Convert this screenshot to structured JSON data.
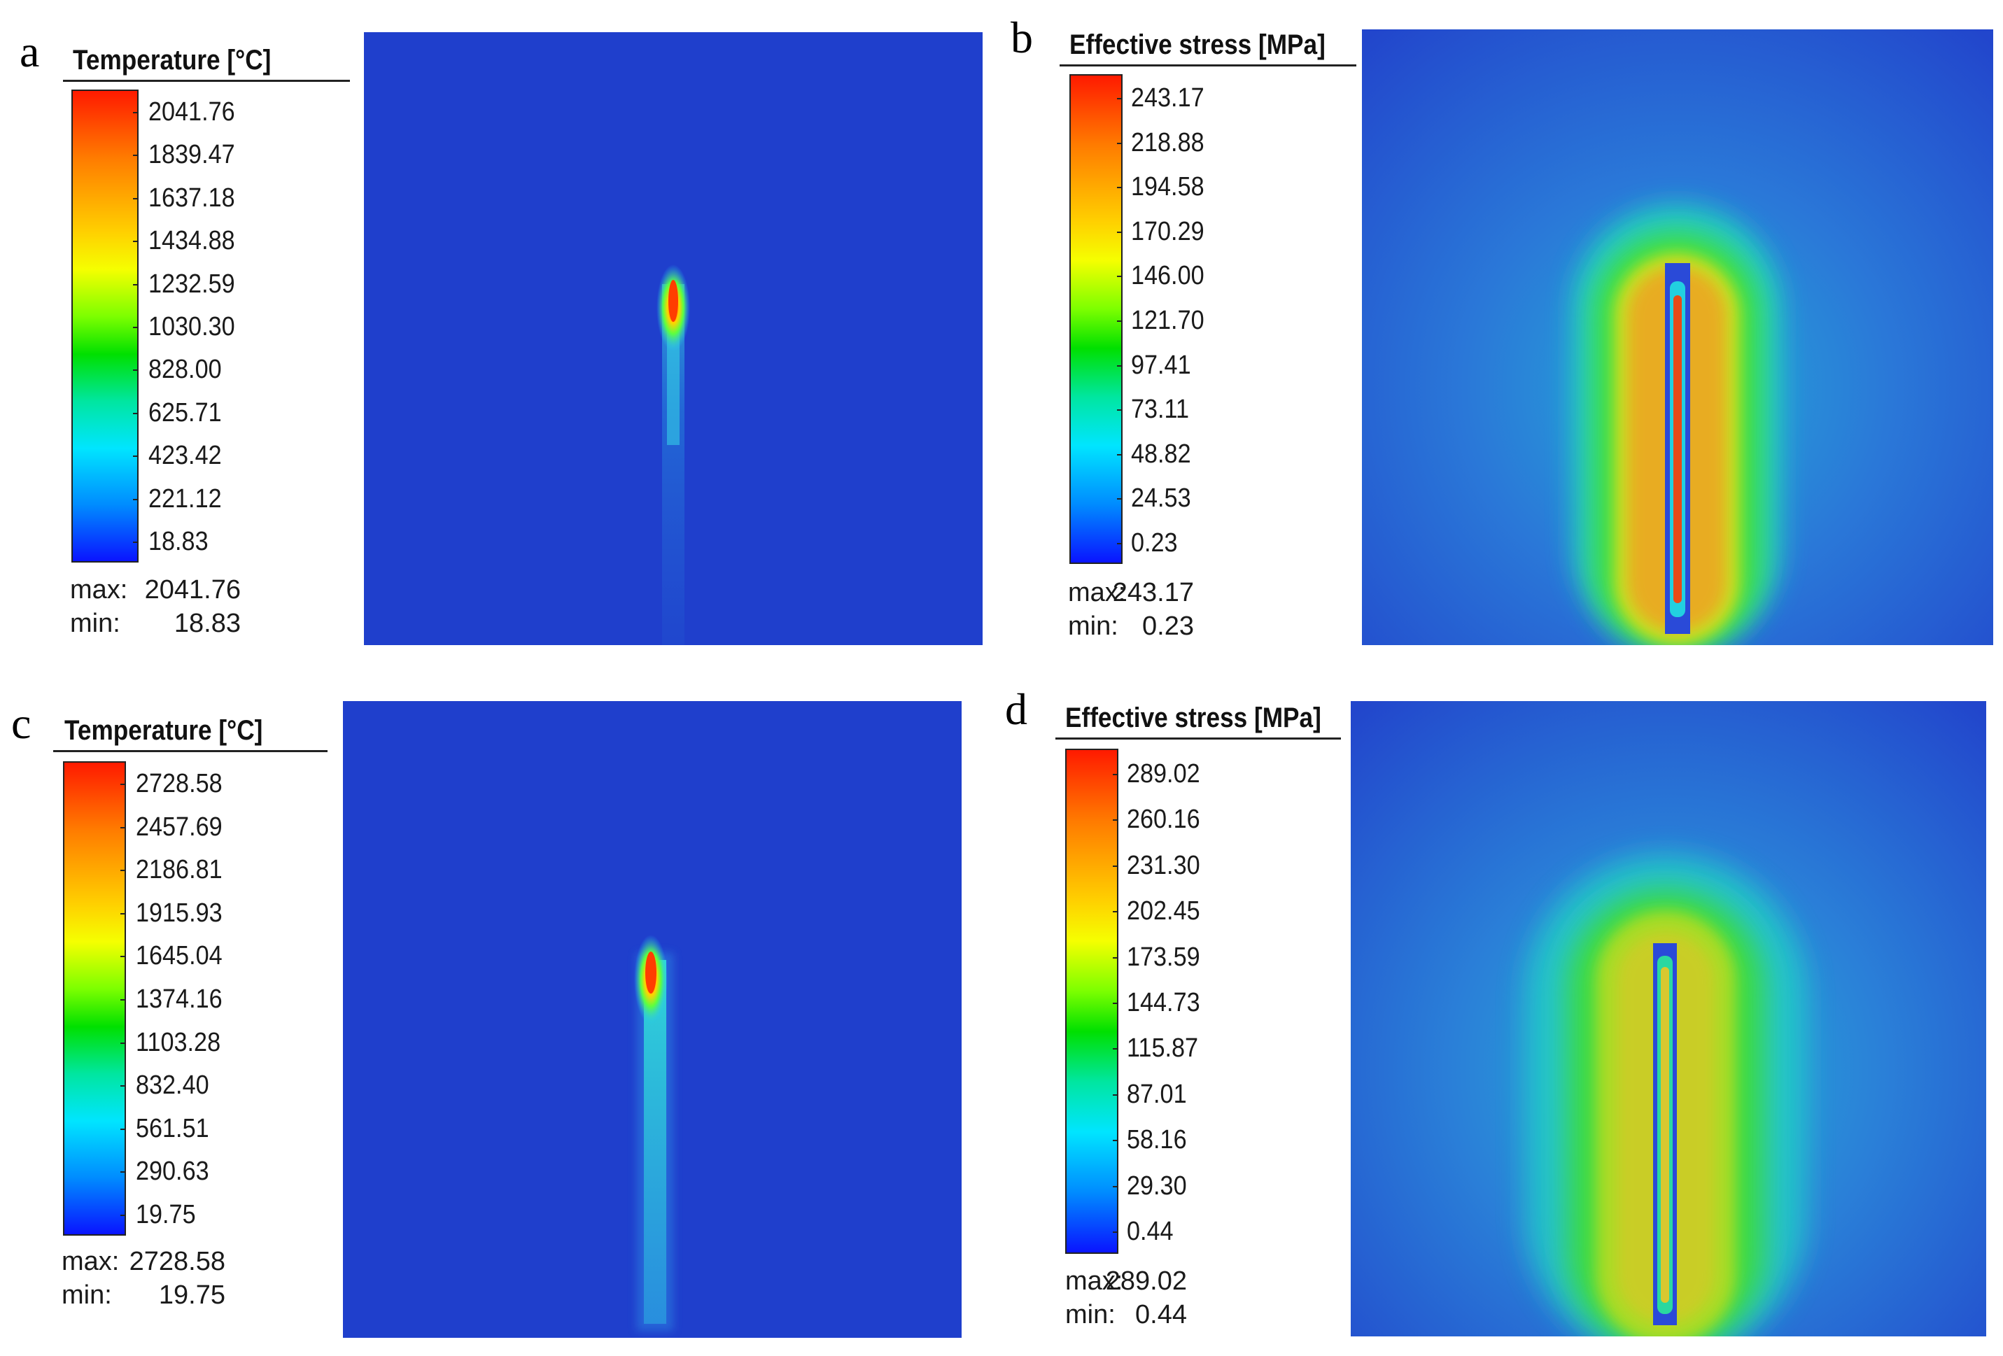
{
  "panels": [
    {
      "letter": "a",
      "legend_title": "Temperature [°C]",
      "ticks": [
        "2041.76",
        "1839.47",
        "1637.18",
        "1434.88",
        "1232.59",
        "1030.30",
        "828.00",
        "625.71",
        "423.42",
        "221.12",
        "18.83"
      ],
      "max_label": "max:",
      "max_value": "2041.76",
      "min_label": "min:",
      "min_value": "18.83"
    },
    {
      "letter": "b",
      "legend_title": "Effective stress [MPa]",
      "ticks": [
        "243.17",
        "218.88",
        "194.58",
        "170.29",
        "146.00",
        "121.70",
        "97.41",
        "73.11",
        "48.82",
        "24.53",
        "0.23"
      ],
      "max_label": "max:",
      "max_value": "243.17",
      "min_label": "min:",
      "min_value": "0.23"
    },
    {
      "letter": "c",
      "legend_title": "Temperature [°C]",
      "ticks": [
        "2728.58",
        "2457.69",
        "2186.81",
        "1915.93",
        "1645.04",
        "1374.16",
        "1103.28",
        "832.40",
        "561.51",
        "290.63",
        "19.75"
      ],
      "max_label": "max:",
      "max_value": "2728.58",
      "min_label": "min:",
      "min_value": "19.75"
    },
    {
      "letter": "d",
      "legend_title": "Effective stress [MPa]",
      "ticks": [
        "289.02",
        "260.16",
        "231.30",
        "202.45",
        "173.59",
        "144.73",
        "115.87",
        "87.01",
        "58.16",
        "29.30",
        "0.44"
      ],
      "max_label": "max:",
      "max_value": "289.02",
      "min_label": "min:",
      "min_value": "0.44"
    }
  ],
  "colors": {
    "background_field": "#1f3fcc",
    "hot": "#ff2a00"
  }
}
